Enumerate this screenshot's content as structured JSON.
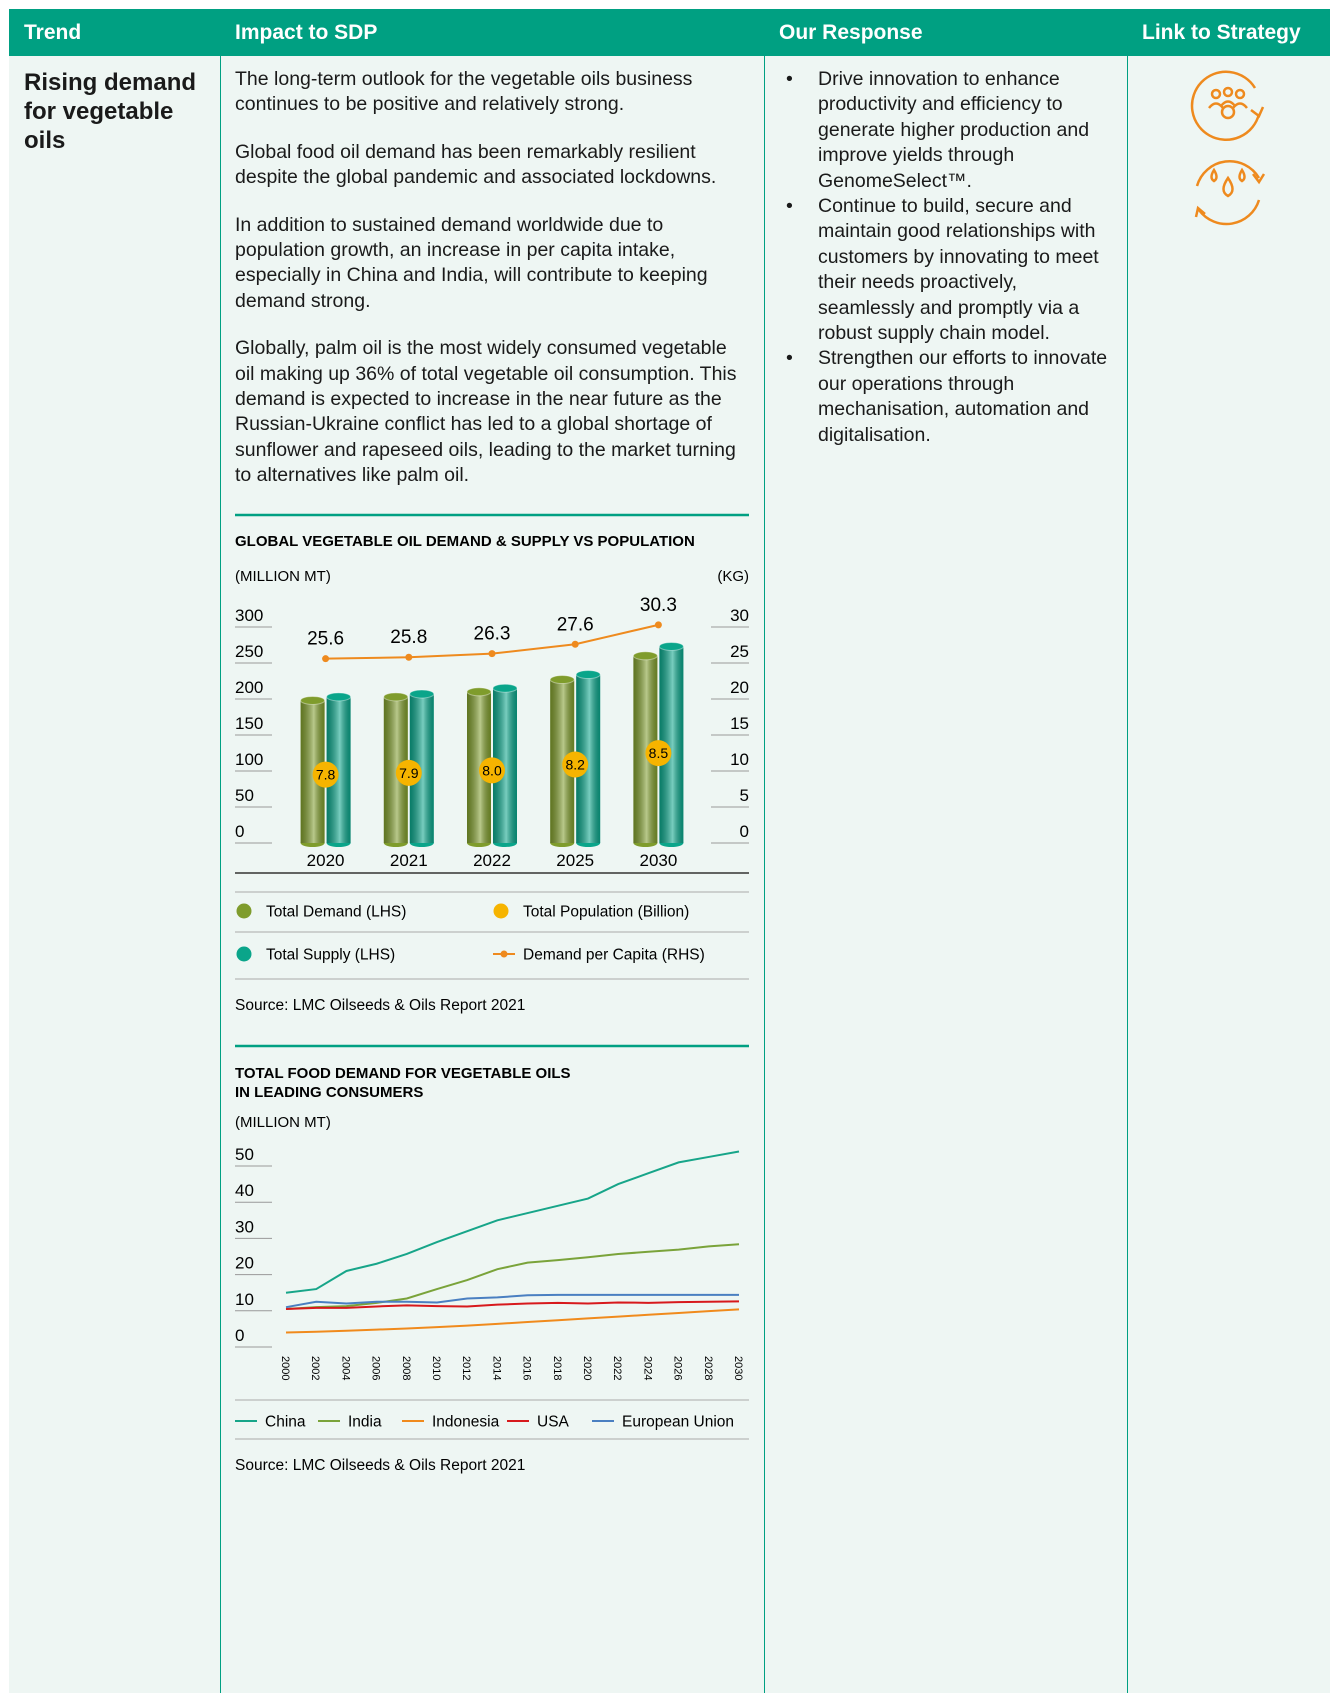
{
  "table": {
    "headers": [
      "Trend",
      "Impact to SDP",
      "Our Response",
      "Link to Strategy"
    ],
    "trend": "Rising demand for vegetable oils",
    "impact": [
      "The long-term outlook for the vegetable oils business continues to be positive and relatively strong.",
      "Global food oil demand has been remarkably resilient despite the global pandemic and associated lockdowns.",
      "In addition to sustained demand worldwide due to population growth, an increase in per capita intake, especially in China and India, will contribute to keeping demand strong.",
      "Globally, palm oil is the most widely consumed vegetable oil making up 36% of total vegetable oil consumption. This demand is expected to increase in the near future as the Russian-Ukraine conflict has led to a global shortage of sunflower and rapeseed oils, leading to the market turning to alternatives like palm oil."
    ],
    "response": [
      "Drive innovation to enhance productivity and efficiency to generate higher production and improve yields through GenomeSelect™.",
      "Continue to build, secure and maintain good relationships with customers by innovating to meet their needs proactively, seamlessly and promptly via a robust supply chain model.",
      "Strengthen our efforts to innovate our operations through mechanisation, automation and digitalisation."
    ]
  },
  "chart_data": [
    {
      "type": "bar",
      "title": "GLOBAL VEGETABLE OIL DEMAND & SUPPLY VS POPULATION",
      "ylabel": "(MILLION MT)",
      "y2label": "(KG)",
      "categories": [
        "2020",
        "2021",
        "2022",
        "2025",
        "2030"
      ],
      "series": [
        {
          "name": "Total Demand (LHS)",
          "type": "bar",
          "color": "#7f9c2c",
          "values": [
            198,
            203,
            210,
            227,
            260
          ]
        },
        {
          "name": "Total Supply (LHS)",
          "type": "bar",
          "color": "#0aa58a",
          "values": [
            203,
            207,
            215,
            234,
            273
          ]
        },
        {
          "name": "Total Population (Billion)",
          "type": "bubble",
          "color": "#f6b400",
          "values": [
            7.8,
            7.9,
            8,
            8.2,
            8.5
          ],
          "value_labels": [
            "7.8",
            "7.9",
            "8.0",
            "8.2",
            "8.5"
          ]
        },
        {
          "name": "Demand per Capita (RHS)",
          "type": "line",
          "axis": "y2",
          "color": "#ee8a1e",
          "values": [
            25.6,
            25.8,
            26.3,
            27.6,
            30.3
          ]
        }
      ],
      "ylim": [
        0,
        300
      ],
      "yticks": [
        0,
        50,
        100,
        150,
        200,
        250,
        300
      ],
      "y2lim": [
        0,
        30
      ],
      "y2ticks": [
        0,
        5,
        10,
        15,
        20,
        25,
        30
      ],
      "source": "Source: LMC Oilseeds & Oils Report 2021"
    },
    {
      "type": "line",
      "title": [
        "TOTAL FOOD DEMAND FOR VEGETABLE OILS",
        "IN LEADING CONSUMERS"
      ],
      "ylabel": "(MILLION MT)",
      "x": [
        2000,
        2002,
        2004,
        2006,
        2008,
        2010,
        2012,
        2014,
        2016,
        2018,
        2020,
        2022,
        2024,
        2026,
        2028,
        2030
      ],
      "series": [
        {
          "name": "China",
          "color": "#17a589",
          "values": [
            15,
            16,
            21,
            23,
            25.7,
            29,
            32,
            35,
            37,
            39,
            41,
            45,
            48,
            51,
            52.5,
            54
          ]
        },
        {
          "name": "India",
          "color": "#7aa33a",
          "values": [
            10.5,
            11,
            11.3,
            12.2,
            13.4,
            16,
            18.5,
            21.5,
            23.3,
            24,
            24.8,
            25.7,
            26.3,
            26.9,
            27.8,
            28.4
          ]
        },
        {
          "name": "Indonesia",
          "color": "#f08a1c",
          "values": [
            4,
            4.2,
            4.5,
            4.8,
            5.1,
            5.5,
            5.9,
            6.4,
            6.9,
            7.4,
            7.9,
            8.4,
            8.9,
            9.4,
            9.9,
            10.4
          ]
        },
        {
          "name": "USA",
          "color": "#d7191c",
          "values": [
            10.5,
            10.8,
            10.8,
            11.2,
            11.5,
            11.3,
            11.2,
            11.7,
            12,
            12.2,
            12,
            12.3,
            12.2,
            12.4,
            12.5,
            12.6
          ]
        },
        {
          "name": "European Union",
          "color": "#4a7fc1",
          "values": [
            11,
            12.5,
            12,
            12.5,
            12.5,
            12.3,
            13.4,
            13.7,
            14.3,
            14.4,
            14.4,
            14.4,
            14.4,
            14.4,
            14.4,
            14.4
          ]
        }
      ],
      "xlim": [
        2000,
        2030
      ],
      "xticks": [
        2000,
        2002,
        2004,
        2006,
        2008,
        2010,
        2012,
        2014,
        2016,
        2018,
        2020,
        2022,
        2024,
        2026,
        2028,
        2030
      ],
      "ylim": [
        0,
        50
      ],
      "yticks": [
        0,
        10,
        20,
        30,
        40,
        50
      ],
      "source": "Source: LMC Oilseeds & Oils Report 2021"
    }
  ]
}
